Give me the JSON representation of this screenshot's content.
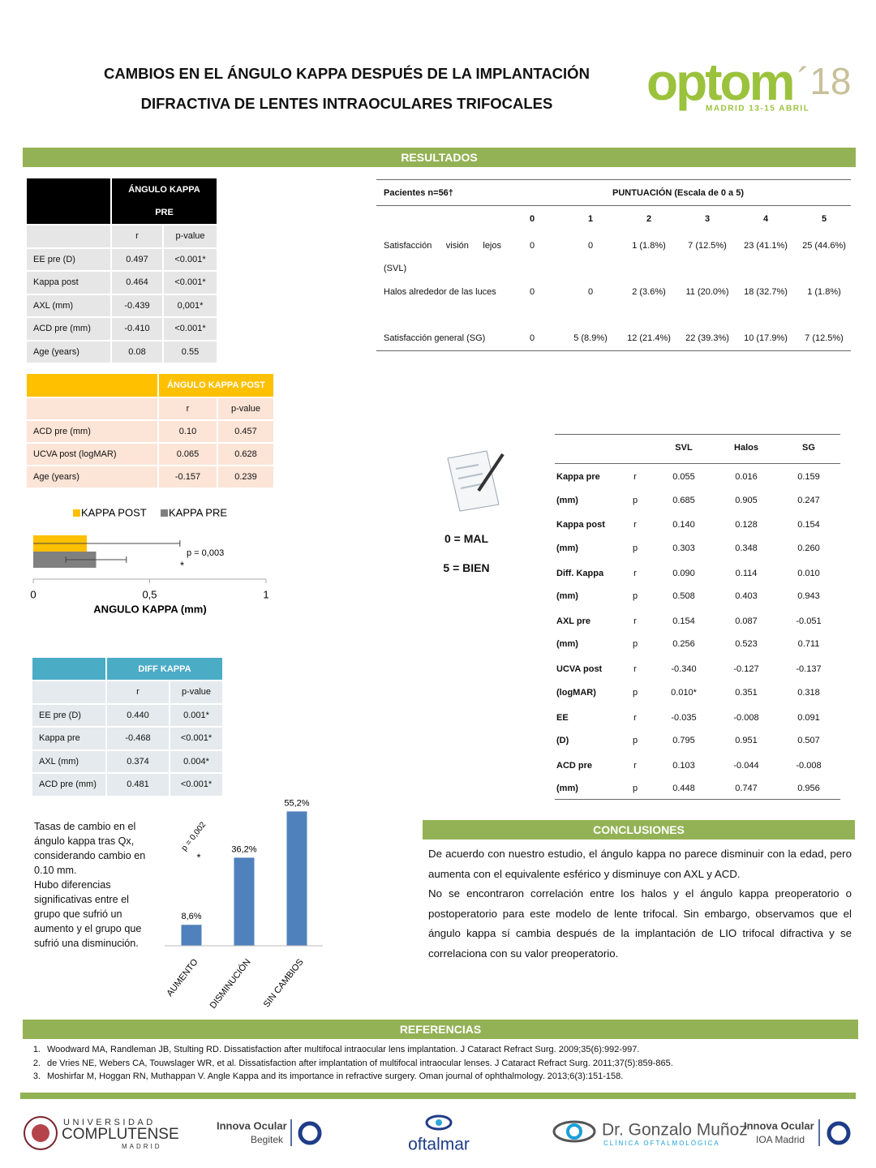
{
  "header": {
    "title_lines": [
      "CAMBIOS EN EL ÁNGULO KAPPA DESPUÉS DE LA IMPLANTACIÓN",
      "DIFRACTIVA DE LENTES INTRAOCULARES TRIFOCALES"
    ],
    "logo": {
      "brand": "optom",
      "year": "´18",
      "event": "MADRID 13-15 ABRIL"
    }
  },
  "results_heading": "RESULTADOS",
  "kappa_pre_table": {
    "title": "ÁNGULO KAPPA PRE",
    "columns": [
      "r",
      "p-value"
    ],
    "rows": [
      [
        "EE pre (D)",
        "0.497",
        "<0.001*"
      ],
      [
        "Kappa post",
        "0.464",
        "<0.001*"
      ],
      [
        "AXL (mm)",
        "-0.439",
        "0,001*"
      ],
      [
        "ACD pre (mm)",
        "-0.410",
        "<0.001*"
      ],
      [
        "Age (years)",
        "0.08",
        "0.55"
      ]
    ]
  },
  "kappa_post_table": {
    "title": "ÁNGULO KAPPA POST",
    "columns": [
      "r",
      "p-value"
    ],
    "rows": [
      [
        "ACD pre (mm)",
        "0.10",
        "0.457"
      ],
      [
        "UCVA post  (logMAR)",
        "0.065",
        "0.628"
      ],
      [
        "Age (years)",
        "-0.157",
        "0.239"
      ]
    ]
  },
  "diff_kappa_table": {
    "title": "DIFF KAPPA",
    "columns": [
      "r",
      "p-value"
    ],
    "rows": [
      [
        "EE pre (D)",
        "0.440",
        "0.001*"
      ],
      [
        "Kappa pre",
        "-0.468",
        "<0.001*"
      ],
      [
        "AXL (mm)",
        "0.374",
        "0.004*"
      ],
      [
        "ACD pre (mm)",
        "0.481",
        "<0.001*"
      ]
    ]
  },
  "chart_data": [
    {
      "type": "hbar",
      "categories": [
        null
      ],
      "series": [
        {
          "name": "KAPPA POST",
          "color": "#ffc000",
          "values": [
            0.23
          ],
          "errors": [
            0.4
          ]
        },
        {
          "name": "KAPPA PRE",
          "color": "#808080",
          "values": [
            0.27
          ],
          "errors": [
            0.13
          ]
        }
      ],
      "xlim": [
        0,
        1
      ],
      "xticks": [
        0,
        {
          "value": 0.5,
          "label": "0,5"
        },
        1
      ],
      "xlabel": "ANGULO KAPPA (mm)",
      "annotations": [
        "p = 0,003",
        "*"
      ],
      "legend": "top"
    },
    {
      "type": "bar",
      "categories": [
        "AUMENTO",
        "DISMINUCIÓN",
        "SIN CAMBIOS"
      ],
      "values": [
        8.6,
        36.2,
        55.2
      ],
      "value_labels": [
        "8,6%",
        "36,2%",
        "55,2%"
      ],
      "color": "#4f81bd",
      "ylim": [
        0,
        60
      ],
      "annotations": [
        "p = 0,002",
        "*"
      ]
    }
  ],
  "change_note": [
    "Tasas de cambio en el ángulo kappa tras Qx, considerando cambio en 0.10 mm.",
    "Hubo diferencias significativas entre el grupo que sufrió un aumento y el grupo que sufrió una disminución."
  ],
  "scores_table": {
    "header_left": "Pacientes n=56†",
    "header_right": "PUNTUACIÓN (Escala de 0 a 5)",
    "columns": [
      "0",
      "1",
      "2",
      "3",
      "4",
      "5"
    ],
    "rows": [
      {
        "label": "Satisfacción visión lejos (SVL)",
        "values": [
          "0",
          "0",
          "1 (1.8%)",
          "7 (12.5%)",
          "23 (41.1%)",
          "25 (44.6%)"
        ]
      },
      {
        "label": "Halos alrededor de las luces",
        "values": [
          "0",
          "0",
          "2 (3.6%)",
          "11 (20.0%)",
          "18 (32.7%)",
          "1 (1.8%)"
        ]
      },
      {
        "label": "Satisfacción general (SG)",
        "values": [
          "0",
          "5 (8.9%)",
          "12 (21.4%)",
          "22 (39.3%)",
          "10 (17.9%)",
          "7 (12.5%)"
        ]
      }
    ]
  },
  "scale_note": [
    "0 = MAL",
    "5 = BIEN"
  ],
  "correlation_table": {
    "columns": [
      "SVL",
      "Halos",
      "SG"
    ],
    "stat_labels": [
      "r",
      "p"
    ],
    "groups": [
      {
        "label": [
          "Kappa pre",
          "(mm)"
        ],
        "r": [
          "0.055",
          "0.016",
          "0.159"
        ],
        "p": [
          "0.685",
          "0.905",
          "0.247"
        ]
      },
      {
        "label": [
          "Kappa post",
          "(mm)"
        ],
        "r": [
          "0.140",
          "0.128",
          "0.154"
        ],
        "p": [
          "0.303",
          "0.348",
          "0.260"
        ]
      },
      {
        "label": [
          "Diff. Kappa",
          "(mm)"
        ],
        "r": [
          "0.090",
          "0.114",
          "0.010"
        ],
        "p": [
          "0.508",
          "0.403",
          "0.943"
        ]
      },
      {
        "label": [
          "AXL pre",
          "(mm)"
        ],
        "r": [
          "0.154",
          "0.087",
          "-0.051"
        ],
        "p": [
          "0.256",
          "0.523",
          "0.711"
        ]
      },
      {
        "label": [
          "UCVA post",
          "(logMAR)"
        ],
        "r": [
          "-0.340",
          "-0.127",
          "-0.137"
        ],
        "p": [
          "0.010*",
          "0.351",
          "0.318"
        ]
      },
      {
        "label": [
          "EE",
          "(D)"
        ],
        "r": [
          "-0.035",
          "-0.008",
          "0.091"
        ],
        "p": [
          "0.795",
          "0.951",
          "0.507"
        ]
      },
      {
        "label": [
          "ACD pre",
          "(mm)"
        ],
        "r": [
          "0.103",
          "-0.044",
          "-0.008"
        ],
        "p": [
          "0.448",
          "0.747",
          "0.956"
        ]
      }
    ]
  },
  "conclusions": {
    "heading": "CONCLUSIONES",
    "paragraphs": [
      "De acuerdo con nuestro estudio, el ángulo kappa no parece disminuir con la edad, pero aumenta con el equivalente esférico y disminuye con AXL y ACD.",
      "No se encontraron correlación entre los halos y el ángulo kappa preoperatorio o postoperatorio para este modelo de lente trifocal. Sin embargo, observamos que el ángulo kappa sí cambia después de la implantación de LIO trifocal difractiva y se correlaciona con su valor preoperatorio."
    ]
  },
  "references": {
    "heading": "REFERENCIAS",
    "items": [
      {
        "number": "1.",
        "text": "Woodward MA, Randleman JB, Stulting RD. Dissatisfaction after multifocal intraocular lens implantation. J Cataract Refract Surg. 2009;35(6):992-997."
      },
      {
        "number": "2.",
        "text": "de Vries NE, Webers CA, Touwslager WR, et al. Dissatisfaction after implantation of multifocal intraocular lenses. J Cataract Refract Surg. 2011;37(5):859-865."
      },
      {
        "number": "3.",
        "text": "Moshirfar M, Hoggan RN, Muthappan V. Angle Kappa and its importance in refractive surgery. Oman journal of ophthalmology. 2013;6(3):151-158."
      }
    ]
  },
  "footer": {
    "ucm": [
      "UNIVERSIDAD",
      "COMPLUTENSE",
      "MADRID"
    ],
    "innova_begitek": [
      "Innova Ocular",
      "Begitek"
    ],
    "oftalmar": "oftalmar",
    "gonzalo": [
      "Dr. Gonzalo Muñoz",
      "CLÍNICA OFTALMOLÓGICA"
    ],
    "innova_ioa": [
      "Innova Ocular",
      "IOA Madrid"
    ]
  }
}
